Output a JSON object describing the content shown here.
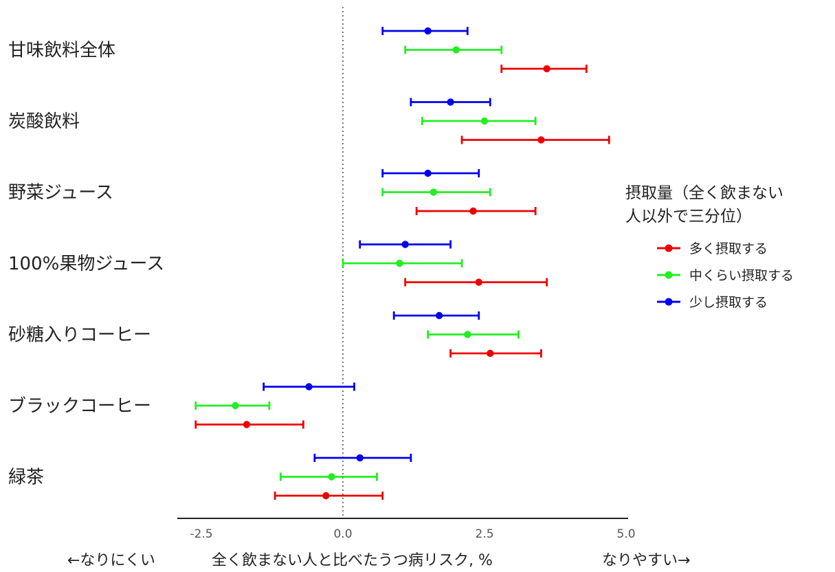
{
  "chart_data": {
    "type": "forest",
    "categories": [
      "甘味飲料全体",
      "炭酸飲料",
      "野菜ジュース",
      "100%果物ジュース",
      "砂糖入りコーヒー",
      "ブラックコーヒー",
      "緑茶"
    ],
    "series": [
      {
        "name": "少し摂取する",
        "color": "#0000ee",
        "estimate": [
          1.5,
          1.9,
          1.5,
          1.1,
          1.7,
          -0.6,
          0.3
        ],
        "lower": [
          0.7,
          1.2,
          0.7,
          0.3,
          0.9,
          -1.4,
          -0.5
        ],
        "upper": [
          2.2,
          2.6,
          2.4,
          1.9,
          2.4,
          0.2,
          1.2
        ]
      },
      {
        "name": "中くらい摂取する",
        "color": "#22ee22",
        "estimate": [
          2.0,
          2.5,
          1.6,
          1.0,
          2.2,
          -1.9,
          -0.2
        ],
        "lower": [
          1.1,
          1.4,
          0.7,
          0.0,
          1.5,
          -2.6,
          -1.1
        ],
        "upper": [
          2.8,
          3.4,
          2.6,
          2.1,
          3.1,
          -1.3,
          0.6
        ]
      },
      {
        "name": "多く摂取する",
        "color": "#ee0000",
        "estimate": [
          3.6,
          3.5,
          2.3,
          2.4,
          2.6,
          -1.7,
          -0.3
        ],
        "lower": [
          2.8,
          2.1,
          1.3,
          1.1,
          1.9,
          -2.6,
          -1.2
        ],
        "upper": [
          4.3,
          4.7,
          3.4,
          3.6,
          3.5,
          -0.7,
          0.7
        ]
      }
    ],
    "xlim": [
      -2.9,
      5.0
    ],
    "xticks": [
      "-2.5",
      "0.0",
      "2.5",
      "5.0"
    ],
    "xtick_values": [
      -2.5,
      0.0,
      2.5,
      5.0
    ],
    "reference_line": 0,
    "xlabel_left": "←なりにくい",
    "xlabel": "全く飲まない人と比べたうつ病リスク, %",
    "xlabel_right": "なりやすい→",
    "legend_title": [
      "摂取量（全く飲まない",
      "人以外で三分位）"
    ],
    "legend_order": [
      "多く摂取する",
      "中くらい摂取する",
      "少し摂取する"
    ],
    "legend_position": "right",
    "grid": false
  }
}
